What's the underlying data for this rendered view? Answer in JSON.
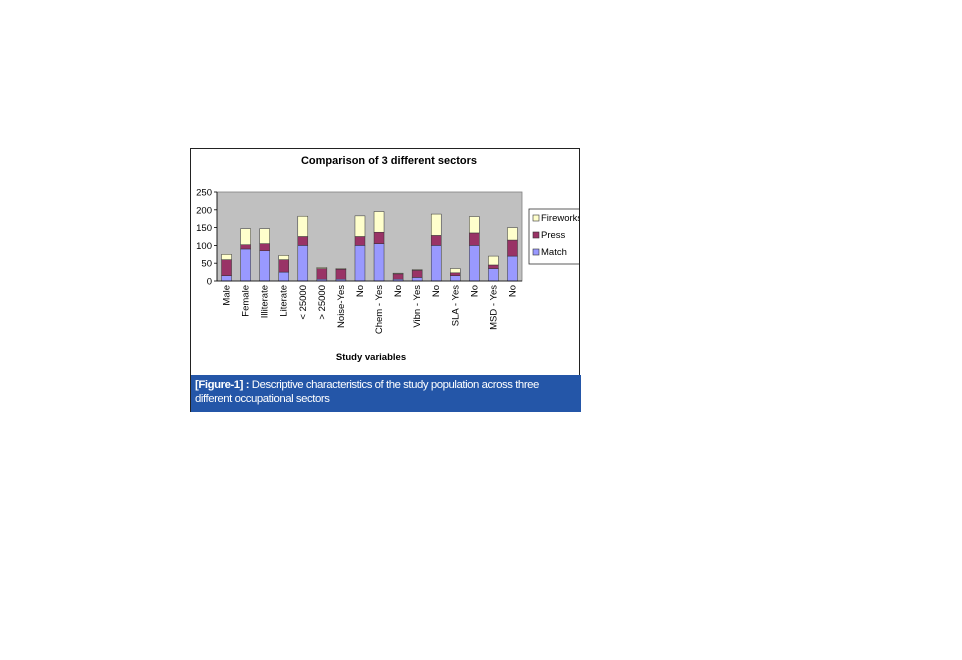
{
  "caption": {
    "ref": "[Figure-1] :",
    "text": " Descriptive characteristics of the study population across three different occupational sectors"
  },
  "chart_data": {
    "type": "bar",
    "stacked": true,
    "title": "Comparison of 3 different sectors",
    "xlabel": "Study variables",
    "ylabel": "",
    "ylim": [
      0,
      250
    ],
    "yticks": [
      0,
      50,
      100,
      150,
      200,
      250
    ],
    "grid": false,
    "plot_background": "#c0c0c0",
    "legend_position": "right",
    "legend_order": [
      "Fireworks",
      "Press",
      "Match"
    ],
    "categories": [
      "Male",
      "Female",
      "Illiterate",
      "Literate",
      "< 25000",
      "> 25000",
      "Noise-Yes",
      "No",
      "Chem - Yes",
      "No",
      "Vibn - Yes",
      "No",
      "SLA - Yes",
      "No",
      "MSD - Yes",
      "No"
    ],
    "series": [
      {
        "name": "Match",
        "color": "#9999ff",
        "values": [
          15,
          90,
          85,
          25,
          100,
          5,
          5,
          100,
          105,
          5,
          10,
          100,
          15,
          100,
          35,
          70
        ]
      },
      {
        "name": "Press",
        "color": "#993366",
        "values": [
          45,
          12,
          20,
          35,
          25,
          30,
          28,
          25,
          32,
          15,
          20,
          28,
          8,
          35,
          10,
          45
        ]
      },
      {
        "name": "Fireworks",
        "color": "#ffffcc",
        "values": [
          15,
          45,
          42,
          12,
          57,
          3,
          2,
          58,
          58,
          2,
          2,
          60,
          12,
          46,
          25,
          35
        ]
      }
    ]
  }
}
